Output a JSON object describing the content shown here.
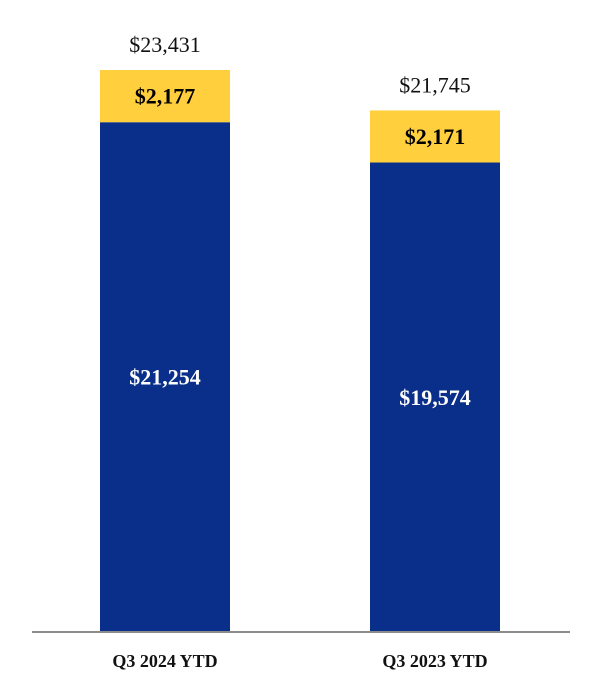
{
  "chart_data": {
    "type": "bar",
    "stacked": true,
    "title": "",
    "xlabel": "",
    "ylabel": "",
    "categories": [
      "Q3 2024 YTD",
      "Q3 2023 YTD"
    ],
    "series": [
      {
        "values": [
          21254,
          19574
        ],
        "labels": [
          "$21,254",
          "$19,574"
        ],
        "color": "#0a2f8a",
        "label_color": "#ffffff"
      },
      {
        "values": [
          2177,
          2171
        ],
        "labels": [
          "$2,177",
          "$2,171"
        ],
        "color": "#ffcf3d",
        "label_color": "#000000"
      }
    ],
    "totals": [
      23431,
      21745
    ],
    "total_labels": [
      "$23,431",
      "$21,745"
    ],
    "ylim": [
      0,
      25000
    ],
    "grid": false,
    "legend": "none",
    "baseline_color": "#8c8c8c"
  }
}
